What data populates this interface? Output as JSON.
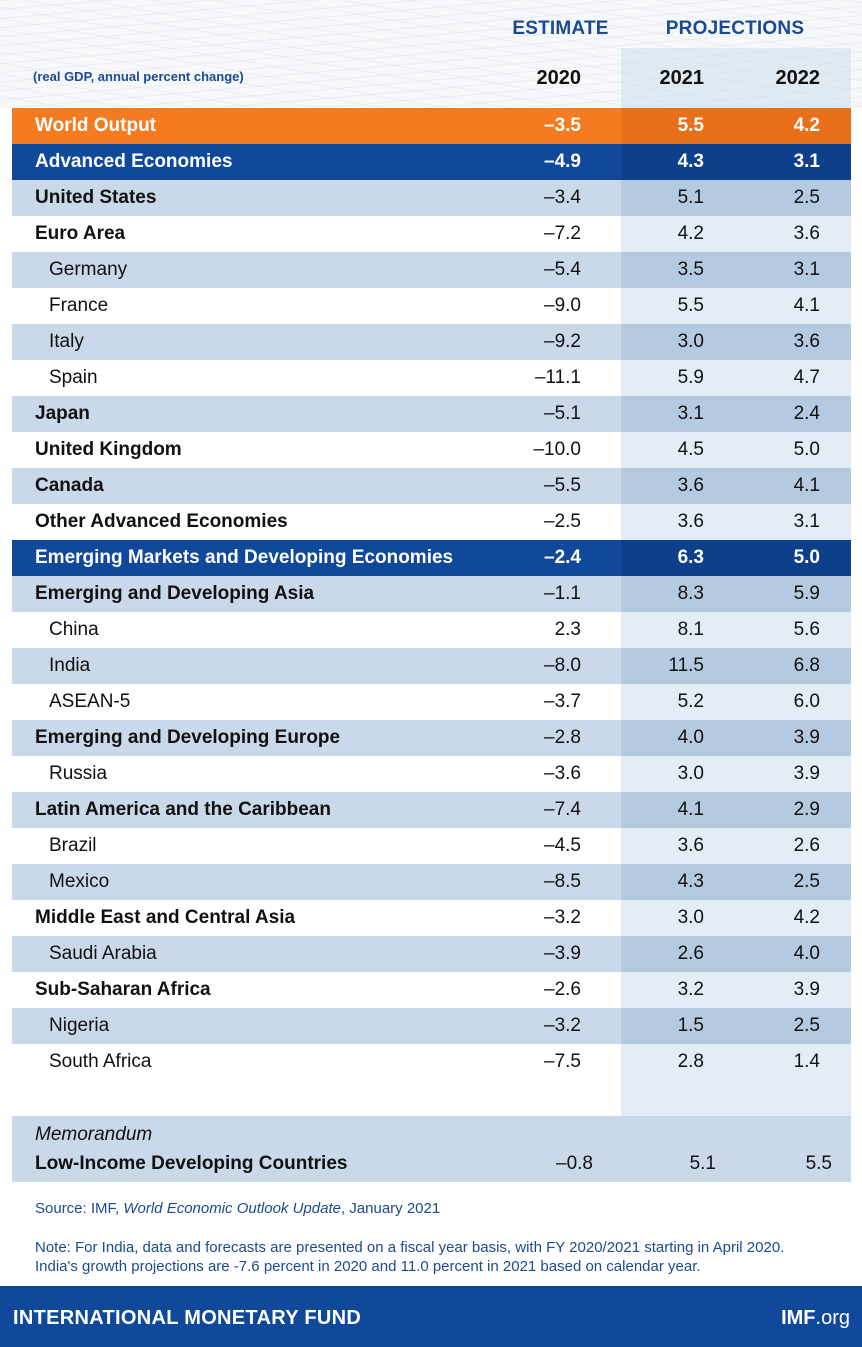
{
  "header": {
    "estimate": "ESTIMATE",
    "projections": "PROJECTIONS",
    "subtitle": "(real GDP, annual percent change)",
    "years": [
      "2020",
      "2021",
      "2022"
    ]
  },
  "rows": [
    {
      "label": "World Output",
      "v": [
        "–3.5",
        "5.5",
        "4.2"
      ]
    },
    {
      "label": "Advanced Economies",
      "v": [
        "–4.9",
        "4.3",
        "3.1"
      ]
    },
    {
      "label": "United States",
      "v": [
        "–3.4",
        "5.1",
        "2.5"
      ]
    },
    {
      "label": "Euro Area",
      "v": [
        "–7.2",
        "4.2",
        "3.6"
      ]
    },
    {
      "label": "Germany",
      "v": [
        "–5.4",
        "3.5",
        "3.1"
      ]
    },
    {
      "label": "France",
      "v": [
        "–9.0",
        "5.5",
        "4.1"
      ]
    },
    {
      "label": "Italy",
      "v": [
        "–9.2",
        "3.0",
        "3.6"
      ]
    },
    {
      "label": "Spain",
      "v": [
        "–11.1",
        "5.9",
        "4.7"
      ]
    },
    {
      "label": "Japan",
      "v": [
        "–5.1",
        "3.1",
        "2.4"
      ]
    },
    {
      "label": "United Kingdom",
      "v": [
        "–10.0",
        "4.5",
        "5.0"
      ]
    },
    {
      "label": "Canada",
      "v": [
        "–5.5",
        "3.6",
        "4.1"
      ]
    },
    {
      "label": "Other Advanced Economies",
      "v": [
        "–2.5",
        "3.6",
        "3.1"
      ]
    },
    {
      "label": "Emerging Markets and Developing Economies",
      "v": [
        "–2.4",
        "6.3",
        "5.0"
      ]
    },
    {
      "label": "Emerging and Developing Asia",
      "v": [
        "–1.1",
        "8.3",
        "5.9"
      ]
    },
    {
      "label": "China",
      "v": [
        "2.3",
        "8.1",
        "5.6"
      ]
    },
    {
      "label": "India",
      "v": [
        "–8.0",
        "11.5",
        "6.8"
      ]
    },
    {
      "label": "ASEAN-5",
      "v": [
        "–3.7",
        "5.2",
        "6.0"
      ]
    },
    {
      "label": "Emerging and Developing Europe",
      "v": [
        "–2.8",
        "4.0",
        "3.9"
      ]
    },
    {
      "label": "Russia",
      "v": [
        "–3.6",
        "3.0",
        "3.9"
      ]
    },
    {
      "label": "Latin America and the Caribbean",
      "v": [
        "–7.4",
        "4.1",
        "2.9"
      ]
    },
    {
      "label": "Brazil",
      "v": [
        "–4.5",
        "3.6",
        "2.6"
      ]
    },
    {
      "label": "Mexico",
      "v": [
        "–8.5",
        "4.3",
        "2.5"
      ]
    },
    {
      "label": "Middle East and Central Asia",
      "v": [
        "–3.2",
        "3.0",
        "4.2"
      ]
    },
    {
      "label": "Saudi Arabia",
      "v": [
        "–3.9",
        "2.6",
        "4.0"
      ]
    },
    {
      "label": "Sub-Saharan Africa",
      "v": [
        "–2.6",
        "3.2",
        "3.9"
      ]
    },
    {
      "label": "Nigeria",
      "v": [
        "–3.2",
        "1.5",
        "2.5"
      ]
    },
    {
      "label": "South Africa",
      "v": [
        "–7.5",
        "2.8",
        "1.4"
      ]
    }
  ],
  "memo": {
    "title": "Memorandum",
    "label": "Low-Income Developing Countries",
    "v": [
      "–0.8",
      "5.1",
      "5.5"
    ]
  },
  "source": {
    "prefix": "Source: IMF, ",
    "title": "World Economic Outlook Update",
    "suffix": ", January 2021"
  },
  "note": {
    "line1": "Note: For India, data and forecasts are presented on a fiscal year basis, with FY 2020/2021 starting in April 2020.",
    "line2": "India's growth projections are -7.6 percent in 2020 and 11.0 percent in 2021 based on calendar year."
  },
  "footer": {
    "org": "INTERNATIONAL MONETARY FUND",
    "site_bold": "IMF",
    "site_rest": ".org"
  },
  "colors": {
    "world_row": "#f47b20",
    "group_row": "#10489a",
    "stripe": "#c9d9ea",
    "heading_text": "#1b4a92"
  }
}
